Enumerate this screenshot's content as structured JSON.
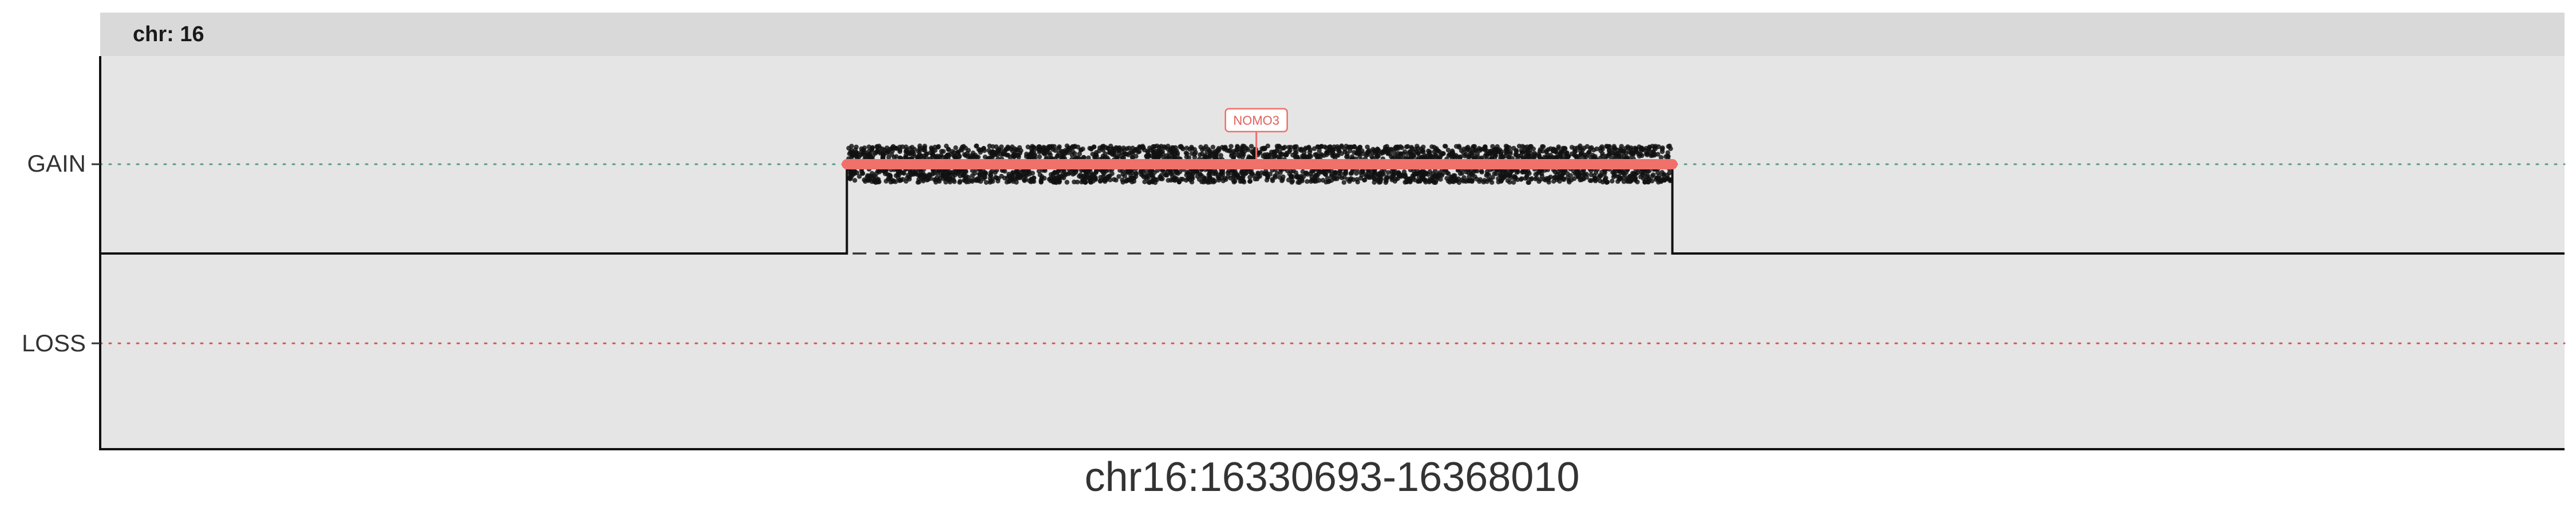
{
  "chart_data": {
    "type": "scatter",
    "title": "",
    "facet_label": "chr: 16",
    "xlabel": "chr16:16330693-16368010",
    "ylabel": "",
    "x_range": [
      16330693,
      16368010
    ],
    "y_categories": [
      "GAIN",
      "LOSS"
    ],
    "segment": {
      "start": 16342000,
      "end": 16354500,
      "state": "GAIN"
    },
    "gene_labels": [
      {
        "name": "NOMO3",
        "position": 16348200
      }
    ],
    "grid": false,
    "colors": {
      "panel_bg": "#e5e5e5",
      "strip_bg": "#d9d9d9",
      "gain_line": "#5a9a8a",
      "loss_line": "#d9534f",
      "segment": "#f0706a",
      "points": "#111111"
    }
  }
}
